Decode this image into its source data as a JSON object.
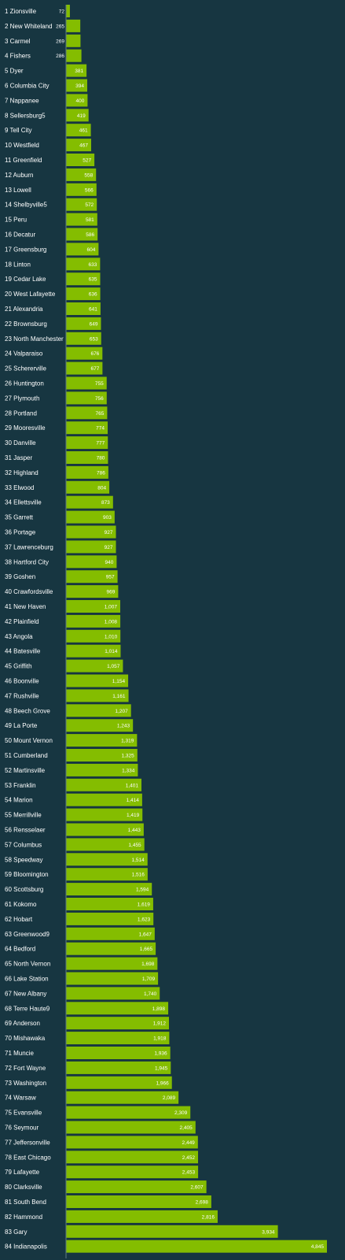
{
  "colors": {
    "background": "#173641",
    "bar": "#84bd00",
    "text": "#ffffff",
    "axis": "#5f7a83"
  },
  "chart_data": {
    "type": "bar",
    "orientation": "horizontal",
    "title": "",
    "xlabel": "",
    "ylabel": "",
    "xlim": [
      0,
      4845
    ],
    "grid": false,
    "legend": "none",
    "categories": [
      "1 Zionsville",
      "2 New Whiteland",
      "3 Carmel",
      "4 Fishers",
      "5 Dyer",
      "6 Columbia City",
      "7 Nappanee",
      "8 Sellersburg5",
      "9 Tell City",
      "10 Westfield",
      "11 Greenfield",
      "12 Auburn",
      "13 Lowell",
      "14 Shelbyville5",
      "15 Peru",
      "16 Decatur",
      "17 Greensburg",
      "18 Linton",
      "19 Cedar Lake",
      "20 West Lafayette",
      "21 Alexandria",
      "22 Brownsburg",
      "23 North Manchester",
      "24 Valparaiso",
      "25 Schererville",
      "26 Huntington",
      "27 Plymouth",
      "28 Portland",
      "29 Mooresville",
      "30 Danville",
      "31 Jasper",
      "32 Highland",
      "33 Elwood",
      "34 Ellettsville",
      "35 Garrett",
      "36 Portage",
      "37 Lawrenceburg",
      "38 Hartford City",
      "39 Goshen",
      "40 Crawfordsville",
      "41 New Haven",
      "42 Plainfield",
      "43 Angola",
      "44 Batesville",
      "45 Griffith",
      "46 Boonville",
      "47 Rushville",
      "48 Beech Grove",
      "49 La Porte",
      "50 Mount Vernon",
      "51 Cumberland",
      "52 Martinsville",
      "53 Franklin",
      "54 Marion",
      "55 Merrillville",
      "56 Rensselaer",
      "57 Columbus",
      "58 Speedway",
      "59 Bloomington",
      "60 Scottsburg",
      "61 Kokomo",
      "62 Hobart",
      "63 Greenwood9",
      "64 Bedford",
      "65 North Vernon",
      "66 Lake Station",
      "67 New Albany",
      "68 Terre Haute9",
      "69 Anderson",
      "70 Mishawaka",
      "71 Muncie",
      "72 Fort Wayne",
      "73 Washington",
      "74 Warsaw",
      "75 Evansville",
      "76 Seymour",
      "77 Jeffersonville",
      "78 East Chicago",
      "79 Lafayette",
      "80 Clarksville",
      "81 South Bend",
      "82 Hammond",
      "83 Gary",
      "84 Indianapolis"
    ],
    "values": [
      72,
      265,
      269,
      286,
      381,
      394,
      400,
      419,
      461,
      467,
      527,
      558,
      566,
      572,
      581,
      586,
      604,
      633,
      635,
      636,
      641,
      649,
      653,
      676,
      677,
      755,
      756,
      765,
      774,
      777,
      780,
      786,
      804,
      873,
      903,
      927,
      927,
      940,
      957,
      969,
      1007,
      1008,
      1010,
      1014,
      1057,
      1154,
      1161,
      1207,
      1243,
      1319,
      1325,
      1334,
      1401,
      1414,
      1419,
      1443,
      1455,
      1514,
      1516,
      1594,
      1619,
      1623,
      1647,
      1665,
      1698,
      1709,
      1740,
      1898,
      1912,
      1918,
      1936,
      1945,
      1966,
      2089,
      2309,
      2405,
      2449,
      2452,
      2453,
      2607,
      2698,
      2816,
      3934,
      4845
    ],
    "value_labels": [
      "72",
      "265",
      "269",
      "286",
      "381",
      "394",
      "400",
      "419",
      "461",
      "467",
      "527",
      "558",
      "566",
      "572",
      "581",
      "586",
      "604",
      "633",
      "635",
      "636",
      "641",
      "649",
      "653",
      "676",
      "677",
      "755",
      "756",
      "765",
      "774",
      "777",
      "780",
      "786",
      "804",
      "873",
      "903",
      "927",
      "927",
      "940",
      "957",
      "969",
      "1,007",
      "1,008",
      "1,010",
      "1,014",
      "1,057",
      "1,154",
      "1,161",
      "1,207",
      "1,243",
      "1,319",
      "1,325",
      "1,334",
      "1,401",
      "1,414",
      "1,419",
      "1,443",
      "1,455",
      "1,514",
      "1,516",
      "1,594",
      "1,619",
      "1,623",
      "1,647",
      "1,665",
      "1,698",
      "1,709",
      "1,740",
      "1,898",
      "1,912",
      "1,918",
      "1,936",
      "1,945",
      "1,966",
      "2,089",
      "2,309",
      "2,405",
      "2,449",
      "2,452",
      "2,453",
      "2,607",
      "2,698",
      "2,816",
      "3,934",
      "4,845"
    ]
  }
}
